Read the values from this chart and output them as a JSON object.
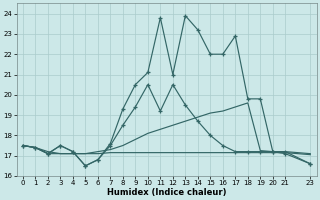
{
  "xlabel": "Humidex (Indice chaleur)",
  "bg_color": "#cce8e8",
  "grid_color": "#aacccc",
  "line_color": "#336666",
  "xlim": [
    -0.5,
    23.5
  ],
  "ylim": [
    16,
    24.5
  ],
  "yticks": [
    16,
    17,
    18,
    19,
    20,
    21,
    22,
    23,
    24
  ],
  "xticks": [
    0,
    1,
    2,
    3,
    4,
    5,
    6,
    7,
    8,
    9,
    10,
    11,
    12,
    13,
    14,
    15,
    16,
    17,
    18,
    19,
    20,
    21,
    23
  ],
  "series": [
    {
      "x": [
        0,
        1,
        2,
        3,
        4,
        5,
        6,
        7,
        8,
        9,
        10,
        11,
        12,
        13,
        14,
        15,
        16,
        17,
        18,
        19,
        20,
        21,
        23
      ],
      "y": [
        17.5,
        17.4,
        17.1,
        17.5,
        17.2,
        16.5,
        16.8,
        17.6,
        19.3,
        20.5,
        21.1,
        23.8,
        21.0,
        23.9,
        23.2,
        22.0,
        22.0,
        22.9,
        19.8,
        19.8,
        17.2,
        17.2,
        16.6
      ],
      "marker": true
    },
    {
      "x": [
        0,
        1,
        2,
        3,
        4,
        5,
        6,
        7,
        8,
        9,
        10,
        11,
        12,
        13,
        14,
        15,
        16,
        17,
        18,
        19,
        20,
        21,
        23
      ],
      "y": [
        17.5,
        17.4,
        17.1,
        17.5,
        17.2,
        16.5,
        16.8,
        17.5,
        18.5,
        19.4,
        20.5,
        19.2,
        20.5,
        19.5,
        18.7,
        18.0,
        17.5,
        17.2,
        17.2,
        17.2,
        17.2,
        17.1,
        16.6
      ],
      "marker": true
    },
    {
      "x": [
        0,
        1,
        2,
        3,
        4,
        5,
        6,
        7,
        8,
        9,
        10,
        11,
        12,
        13,
        14,
        15,
        16,
        17,
        18,
        19,
        20,
        21,
        23
      ],
      "y": [
        17.5,
        17.4,
        17.2,
        17.1,
        17.1,
        17.1,
        17.2,
        17.3,
        17.5,
        17.8,
        18.1,
        18.3,
        18.5,
        18.7,
        18.9,
        19.1,
        19.2,
        19.4,
        19.6,
        17.25,
        17.2,
        17.2,
        17.1
      ],
      "marker": false
    },
    {
      "x": [
        0,
        1,
        2,
        3,
        4,
        5,
        6,
        7,
        8,
        9,
        10,
        11,
        12,
        13,
        14,
        15,
        16,
        17,
        18,
        19,
        20,
        21,
        23
      ],
      "y": [
        17.5,
        17.4,
        17.1,
        17.1,
        17.1,
        17.1,
        17.1,
        17.15,
        17.15,
        17.15,
        17.15,
        17.15,
        17.15,
        17.15,
        17.15,
        17.15,
        17.15,
        17.15,
        17.15,
        17.15,
        17.15,
        17.15,
        17.05
      ],
      "marker": false
    }
  ]
}
